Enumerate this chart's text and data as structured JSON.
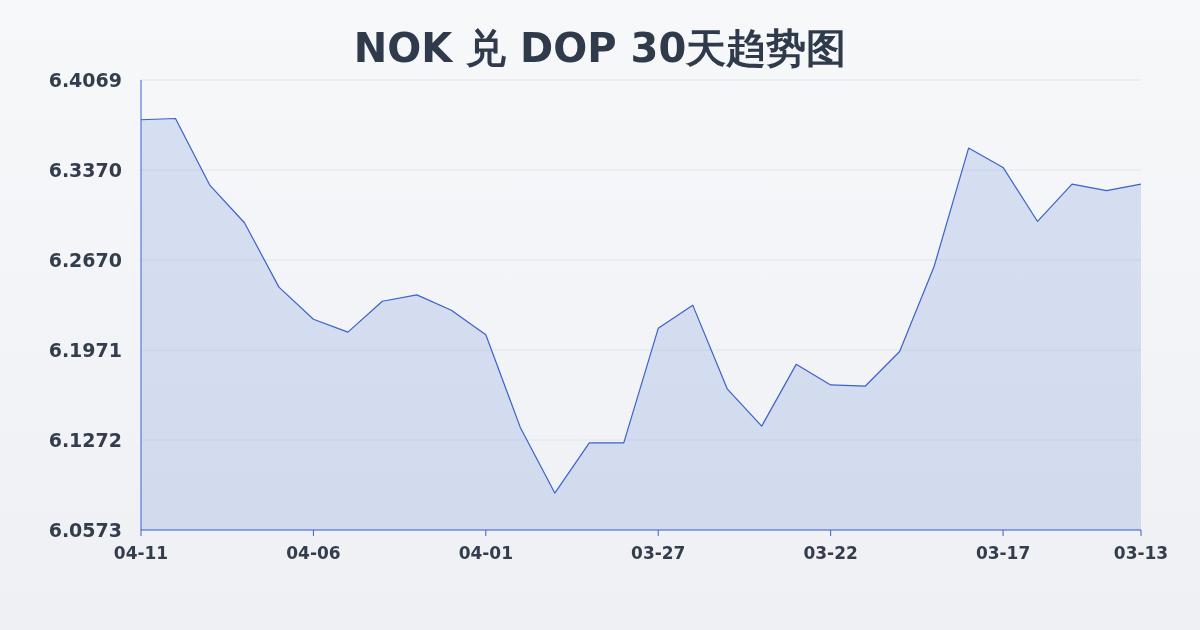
{
  "chart_data": {
    "type": "area",
    "title": "NOK 兑 DOP 30天趋势图",
    "categories": [
      "04-11",
      null,
      null,
      null,
      null,
      "04-06",
      null,
      null,
      null,
      null,
      "04-01",
      null,
      null,
      null,
      null,
      "03-27",
      null,
      null,
      null,
      null,
      "03-22",
      null,
      null,
      null,
      null,
      "03-17",
      null,
      null,
      null,
      "03-13"
    ],
    "series": [
      {
        "color": "#3a62cc",
        "values": [
          6.376,
          6.377,
          6.325,
          6.296,
          6.246,
          6.221,
          6.211,
          6.235,
          6.24,
          6.228,
          6.209,
          6.137,
          6.086,
          6.125,
          6.125,
          6.214,
          6.232,
          6.167,
          6.138,
          6.186,
          6.17,
          6.169,
          6.196,
          6.262,
          6.354,
          6.339,
          6.297,
          6.326,
          6.321,
          6.326
        ]
      }
    ],
    "ylim": [
      6.0573,
      6.4069
    ],
    "yticks": [
      6.0573,
      {
        "value": 6.1272,
        "label": "6.1272"
      },
      6.1971,
      {
        "value": 6.267,
        "label": "6.2670"
      },
      {
        "value": 6.337,
        "label": "6.3370"
      },
      6.4069
    ],
    "grid": "y"
  }
}
